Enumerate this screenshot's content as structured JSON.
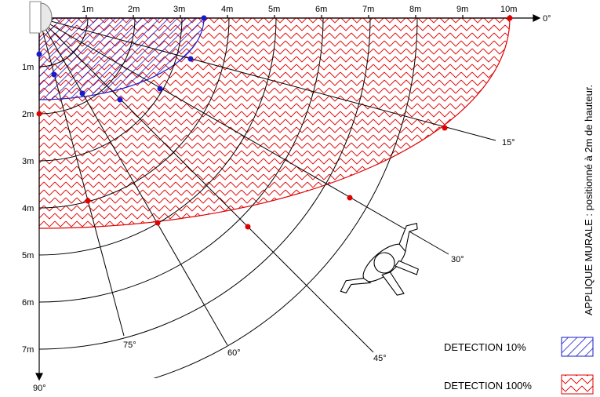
{
  "axis_labels": {
    "x_ticks": [
      "1m",
      "2m",
      "3m",
      "4m",
      "5m",
      "6m",
      "7m",
      "8m",
      "9m",
      "10m"
    ],
    "y_ticks": [
      "1m",
      "2m",
      "3m",
      "4m",
      "5m",
      "6m",
      "7m"
    ],
    "angle_0": "0°",
    "angle_15": "15°",
    "angle_30": "30°",
    "angle_45": "45°",
    "angle_60": "60°",
    "angle_75": "75°",
    "angle_90": "90°"
  },
  "legend": {
    "detection_10": "DETECTION 10%",
    "detection_100": "DETECTION 100%"
  },
  "side_note": "APPLIQUE MURALE : positionné à 2m de hauteur.",
  "colors": {
    "detection_10": "#1a1acc",
    "detection_100": "#e00000",
    "grid": "#000000"
  },
  "icons": {
    "sensor": "wall-sensor-icon",
    "person": "walking-person-icon"
  }
}
